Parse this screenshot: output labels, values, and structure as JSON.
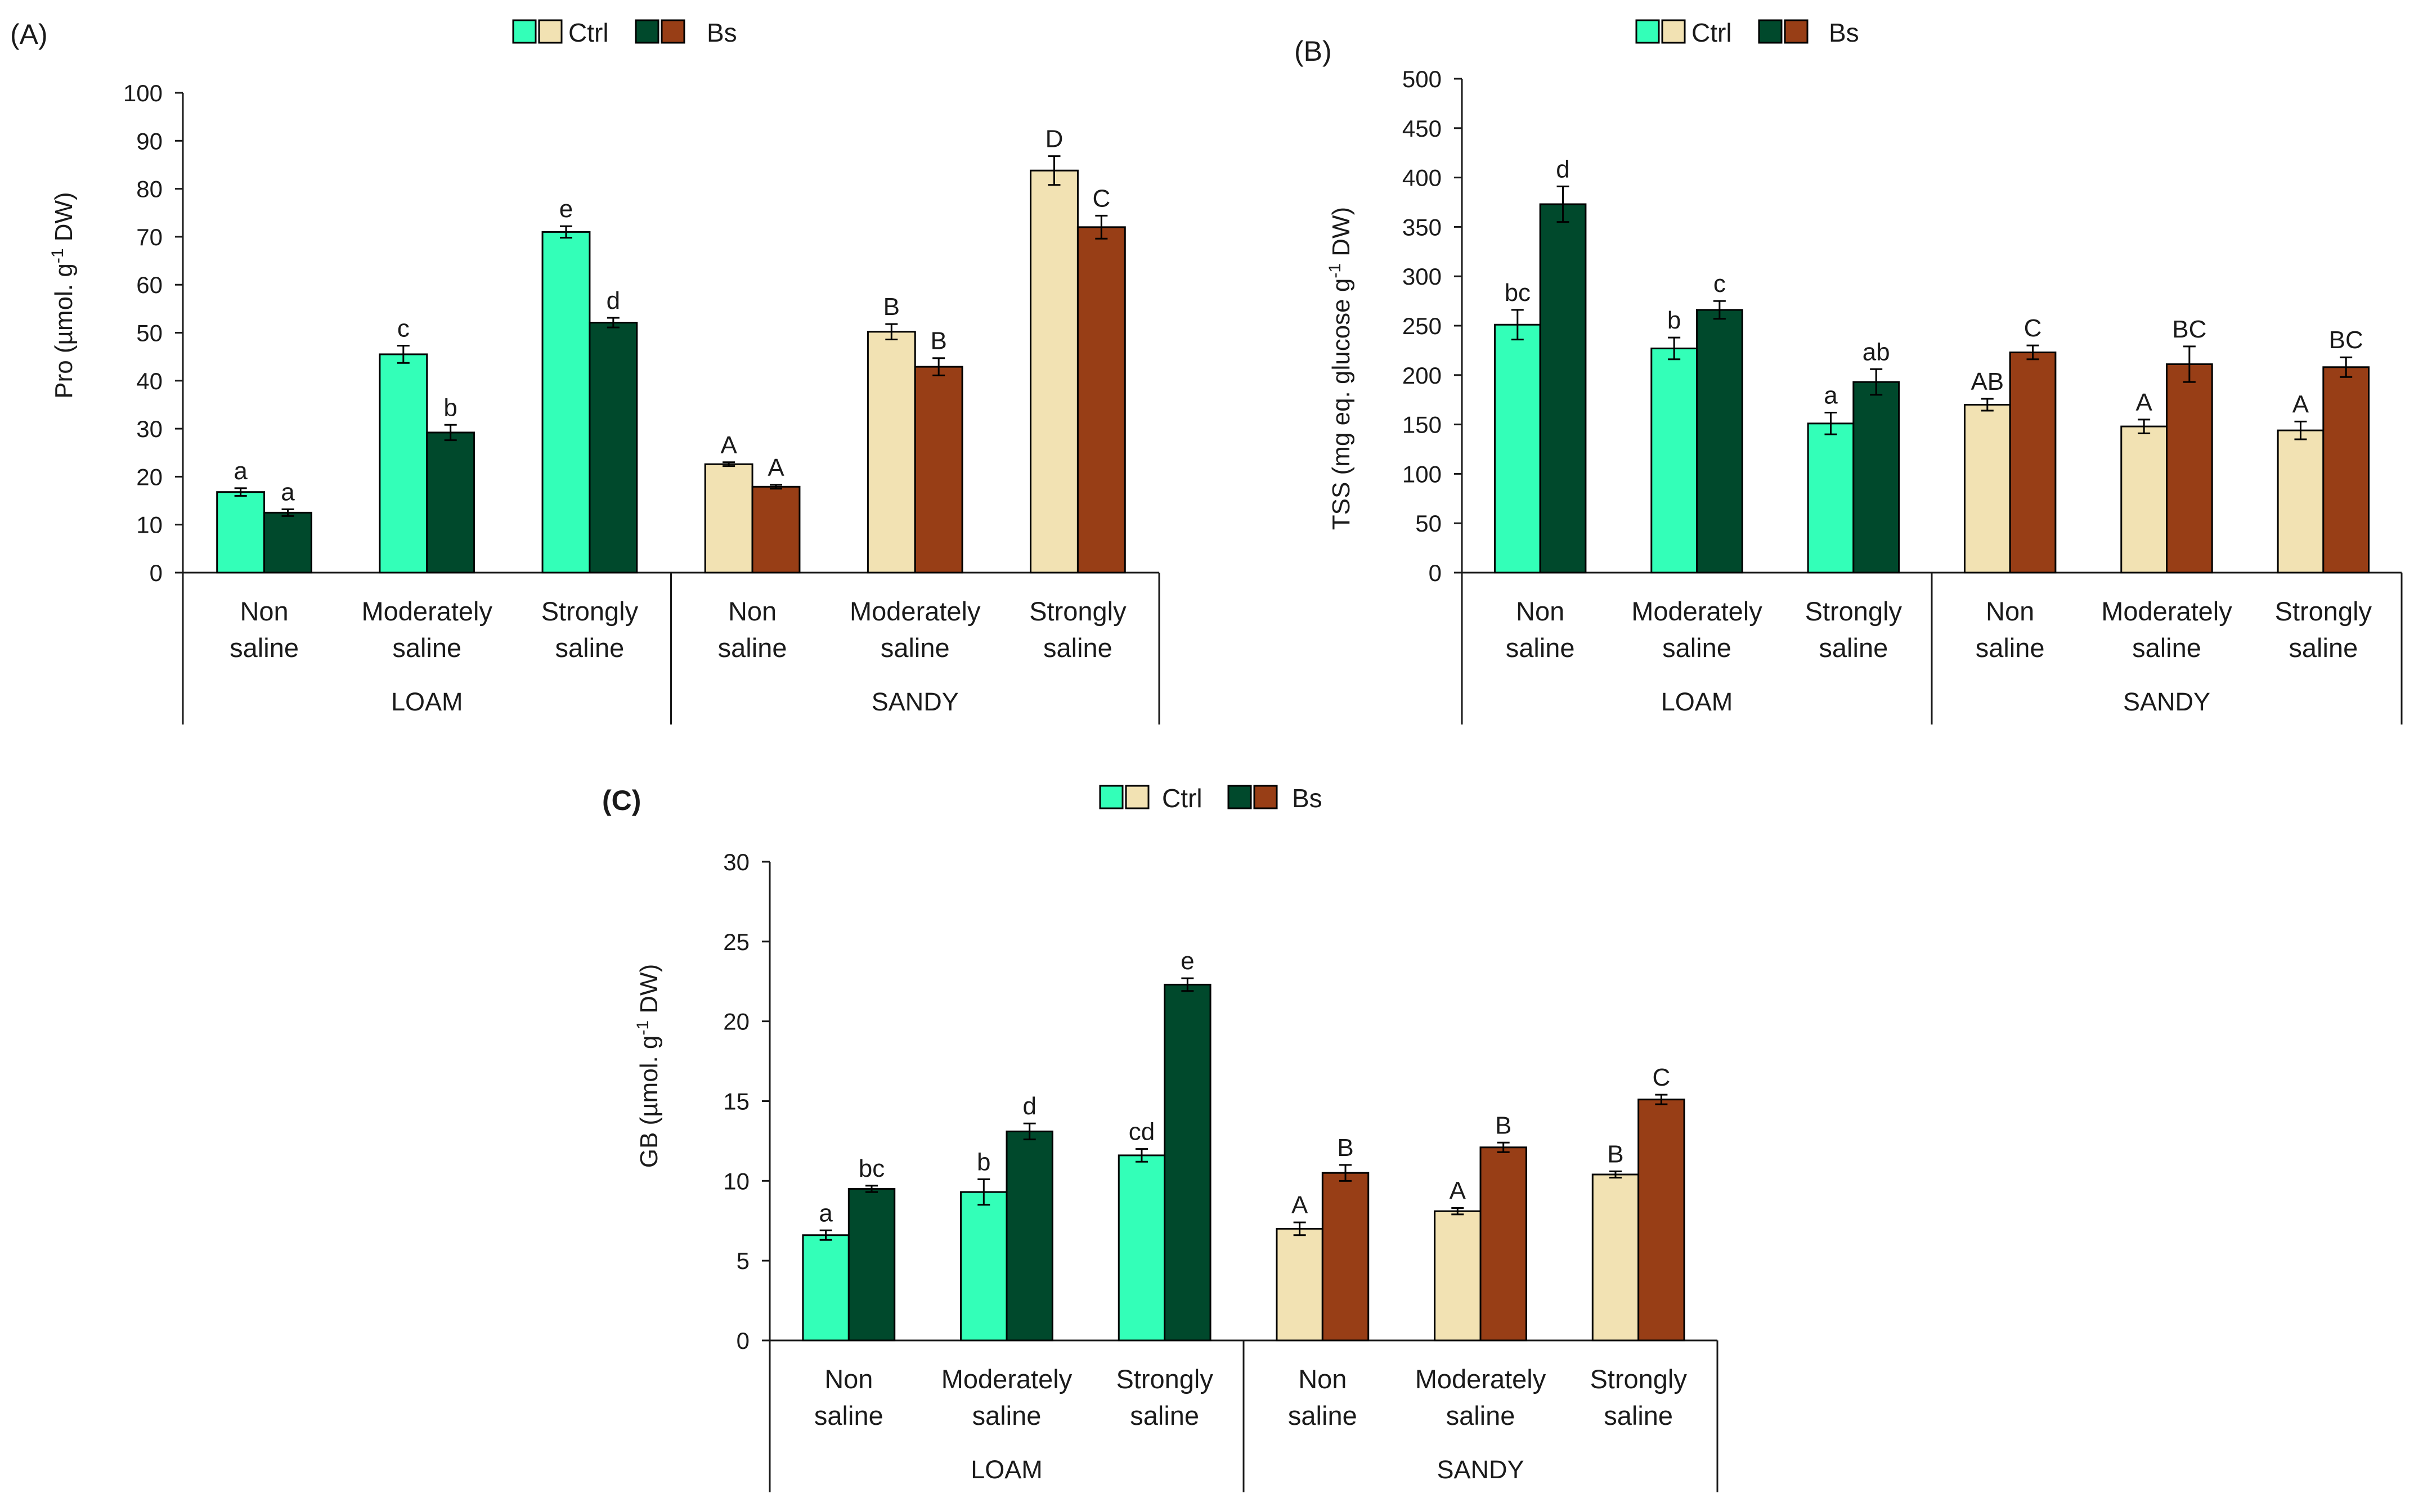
{
  "colors": {
    "loam_ctrl": "#33FFB8",
    "loam_bs": "#00492C",
    "sandy_ctrl": "#F2E2B3",
    "sandy_bs": "#983E16",
    "axis": "#1a1a1a"
  },
  "legend": {
    "ctrl": "Ctrl",
    "bs": "Bs"
  },
  "chart_data": [
    {
      "panel": "(A)",
      "type": "bar",
      "ylabel": "Pro (µmol. g⁻¹ DW)",
      "ylabel_main": "Pro (µmol. g",
      "ylabel_sup": "-1",
      "ylabel_end": " DW)",
      "ylim": [
        0,
        100
      ],
      "yticks": [
        0,
        10,
        20,
        30,
        40,
        50,
        60,
        70,
        80,
        90,
        100
      ],
      "groups": [
        "LOAM",
        "SANDY"
      ],
      "categories": [
        [
          "Non",
          "saline"
        ],
        [
          "Moderately",
          "saline"
        ],
        [
          "Strongly",
          "saline"
        ]
      ],
      "series": [
        {
          "name": "Ctrl",
          "group": "LOAM",
          "values": [
            16.8,
            45.5,
            71.0
          ],
          "errors": [
            0.8,
            1.8,
            1.2
          ],
          "labels": [
            "a",
            "c",
            "e"
          ]
        },
        {
          "name": "Bs",
          "group": "LOAM",
          "values": [
            12.5,
            29.2,
            52.1
          ],
          "errors": [
            0.7,
            1.6,
            1.0
          ],
          "labels": [
            "a",
            "b",
            "d"
          ]
        },
        {
          "name": "Ctrl",
          "group": "SANDY",
          "values": [
            22.6,
            50.2,
            83.8
          ],
          "errors": [
            0.4,
            1.6,
            3.0
          ],
          "labels": [
            "A",
            "B",
            "D"
          ]
        },
        {
          "name": "Bs",
          "group": "SANDY",
          "values": [
            17.9,
            42.9,
            72.0
          ],
          "errors": [
            0.4,
            1.8,
            2.4
          ],
          "labels": [
            "A",
            "B",
            "C"
          ]
        }
      ]
    },
    {
      "panel": "(B)",
      "type": "bar",
      "ylabel": "TSS (mg eq. glucose g⁻¹ DW)",
      "ylabel_main": "TSS (mg eq. glucose g",
      "ylabel_sup": "-1",
      "ylabel_end": " DW)",
      "ylim": [
        0,
        500
      ],
      "yticks": [
        0,
        50,
        100,
        150,
        200,
        250,
        300,
        350,
        400,
        450,
        500
      ],
      "groups": [
        "LOAM",
        "SANDY"
      ],
      "categories": [
        [
          "Non",
          "saline"
        ],
        [
          "Moderately",
          "saline"
        ],
        [
          "Strongly",
          "saline"
        ]
      ],
      "series": [
        {
          "name": "Ctrl",
          "group": "LOAM",
          "values": [
            251,
            227,
            151
          ],
          "errors": [
            15,
            11,
            11
          ],
          "labels": [
            "bc",
            "b",
            "a"
          ]
        },
        {
          "name": "Bs",
          "group": "LOAM",
          "values": [
            373,
            266,
            193
          ],
          "errors": [
            18,
            9,
            13
          ],
          "labels": [
            "d",
            "c",
            "ab"
          ]
        },
        {
          "name": "Ctrl",
          "group": "SANDY",
          "values": [
            170,
            148,
            144
          ],
          "errors": [
            6,
            7,
            9
          ],
          "labels": [
            "AB",
            "A",
            "A"
          ]
        },
        {
          "name": "Bs",
          "group": "SANDY",
          "values": [
            223,
            211,
            208
          ],
          "errors": [
            7,
            18,
            10
          ],
          "labels": [
            "C",
            "BC",
            "BC"
          ]
        }
      ]
    },
    {
      "panel": "(C)",
      "type": "bar",
      "ylabel": "GB (µmol. g⁻¹ DW)",
      "ylabel_main": "GB (µmol. g",
      "ylabel_sup": "-1",
      "ylabel_end": " DW)",
      "ylim": [
        0,
        30
      ],
      "yticks": [
        0,
        5,
        10,
        15,
        20,
        25,
        30
      ],
      "groups": [
        "LOAM",
        "SANDY"
      ],
      "categories": [
        [
          "Non",
          "saline"
        ],
        [
          "Moderately",
          "saline"
        ],
        [
          "Strongly",
          "saline"
        ]
      ],
      "series": [
        {
          "name": "Ctrl",
          "group": "LOAM",
          "values": [
            6.6,
            9.3,
            11.6
          ],
          "errors": [
            0.3,
            0.8,
            0.4
          ],
          "labels": [
            "a",
            "b",
            "cd"
          ]
        },
        {
          "name": "Bs",
          "group": "LOAM",
          "values": [
            9.5,
            13.1,
            22.3
          ],
          "errors": [
            0.2,
            0.5,
            0.4
          ],
          "labels": [
            "bc",
            "d",
            "e"
          ]
        },
        {
          "name": "Ctrl",
          "group": "SANDY",
          "values": [
            7.0,
            8.1,
            10.4
          ],
          "errors": [
            0.4,
            0.2,
            0.2
          ],
          "labels": [
            "A",
            "A",
            "B"
          ]
        },
        {
          "name": "Bs",
          "group": "SANDY",
          "values": [
            10.5,
            12.1,
            15.1
          ],
          "errors": [
            0.5,
            0.3,
            0.3
          ],
          "labels": [
            "B",
            "B",
            "C"
          ]
        }
      ]
    }
  ]
}
